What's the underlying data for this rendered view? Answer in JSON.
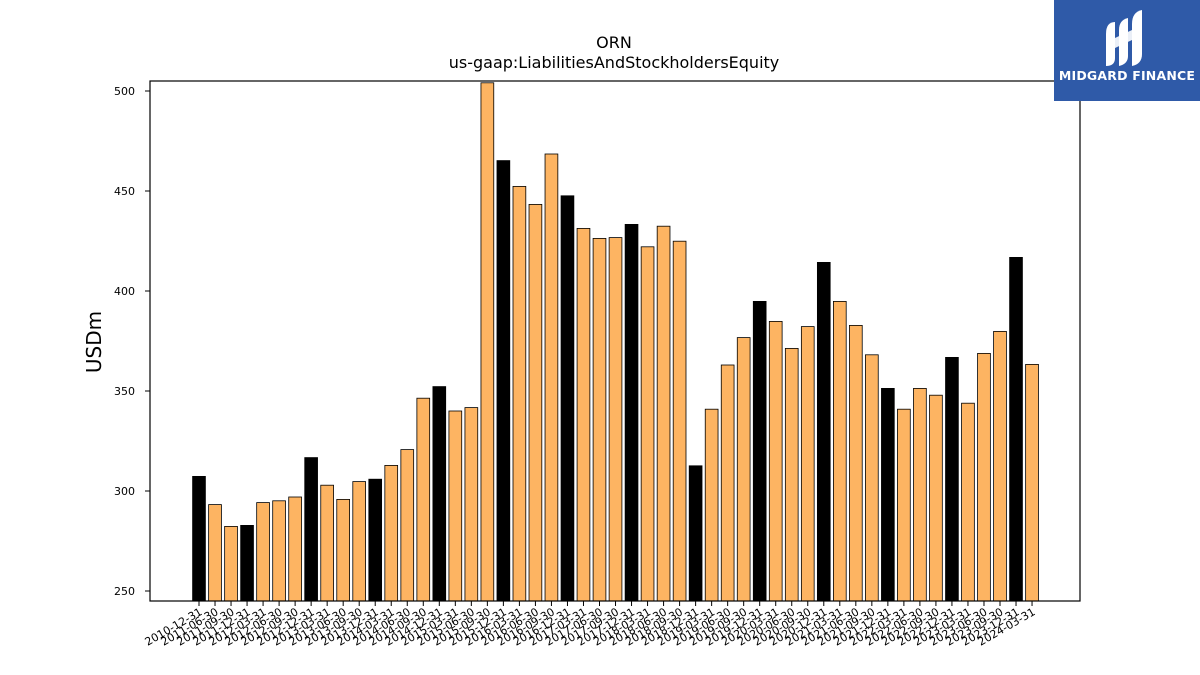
{
  "brand": {
    "name": "MIDGARD FINANCE",
    "logo_icon": "midgard-logo-icon",
    "background": "#2f5aa8"
  },
  "chart_data": {
    "type": "bar",
    "title": "ORN",
    "subtitle": "us-gaap:LiabilitiesAndStockholdersEquity",
    "ylabel": "USDm",
    "xlabel": "",
    "ylim": [
      245,
      505
    ],
    "yticks": [
      250,
      300,
      350,
      400,
      450,
      500
    ],
    "colors": {
      "annual": "#000000",
      "quarterly": "#fdb462",
      "edge": "#000000"
    },
    "categories": [
      "2010-12-31",
      "2011-06-30",
      "2011-09-30",
      "2011-12-31",
      "2012-03-31",
      "2012-06-30",
      "2012-09-30",
      "2012-12-31",
      "2013-03-31",
      "2013-06-30",
      "2013-09-30",
      "2013-12-31",
      "2014-03-31",
      "2014-06-30",
      "2014-09-30",
      "2014-12-31",
      "2015-03-31",
      "2015-06-30",
      "2015-09-30",
      "2015-12-31",
      "2016-03-31",
      "2016-06-30",
      "2016-09-30",
      "2016-12-31",
      "2017-03-31",
      "2017-06-30",
      "2017-09-30",
      "2017-12-31",
      "2018-03-31",
      "2018-06-30",
      "2018-09-30",
      "2018-12-31",
      "2019-03-31",
      "2019-06-30",
      "2019-09-30",
      "2019-12-31",
      "2020-03-31",
      "2020-06-30",
      "2020-09-30",
      "2020-12-31",
      "2021-03-31",
      "2021-06-30",
      "2021-09-30",
      "2021-12-31",
      "2022-03-31",
      "2022-06-30",
      "2022-09-30",
      "2022-12-31",
      "2023-03-31",
      "2023-06-30",
      "2023-09-30",
      "2023-12-31",
      "2024-03-31"
    ],
    "values": [
      307.3,
      293.2,
      282.3,
      282.8,
      294.2,
      295.1,
      297.0,
      316.7,
      302.9,
      295.8,
      304.7,
      305.9,
      312.8,
      320.7,
      346.4,
      352.2,
      340.0,
      341.7,
      504.1,
      465.2,
      452.3,
      443.3,
      468.5,
      447.6,
      431.3,
      426.3,
      426.7,
      433.3,
      422.1,
      432.4,
      424.9,
      312.6,
      340.9,
      363.0,
      376.7,
      394.8,
      384.8,
      371.3,
      382.2,
      414.3,
      394.8,
      382.8,
      368.1,
      351.3,
      340.9,
      351.3,
      347.9,
      366.8,
      343.9,
      368.8,
      379.8,
      416.8,
      363.3
    ],
    "annual_flags": [
      true,
      false,
      false,
      true,
      false,
      false,
      false,
      true,
      false,
      false,
      false,
      true,
      false,
      false,
      false,
      true,
      false,
      false,
      false,
      true,
      false,
      false,
      false,
      true,
      false,
      false,
      false,
      true,
      false,
      false,
      false,
      true,
      false,
      false,
      false,
      true,
      false,
      false,
      false,
      true,
      false,
      false,
      false,
      true,
      false,
      false,
      false,
      true,
      false,
      false,
      false,
      true,
      false
    ],
    "grid": false,
    "legend": "none"
  }
}
